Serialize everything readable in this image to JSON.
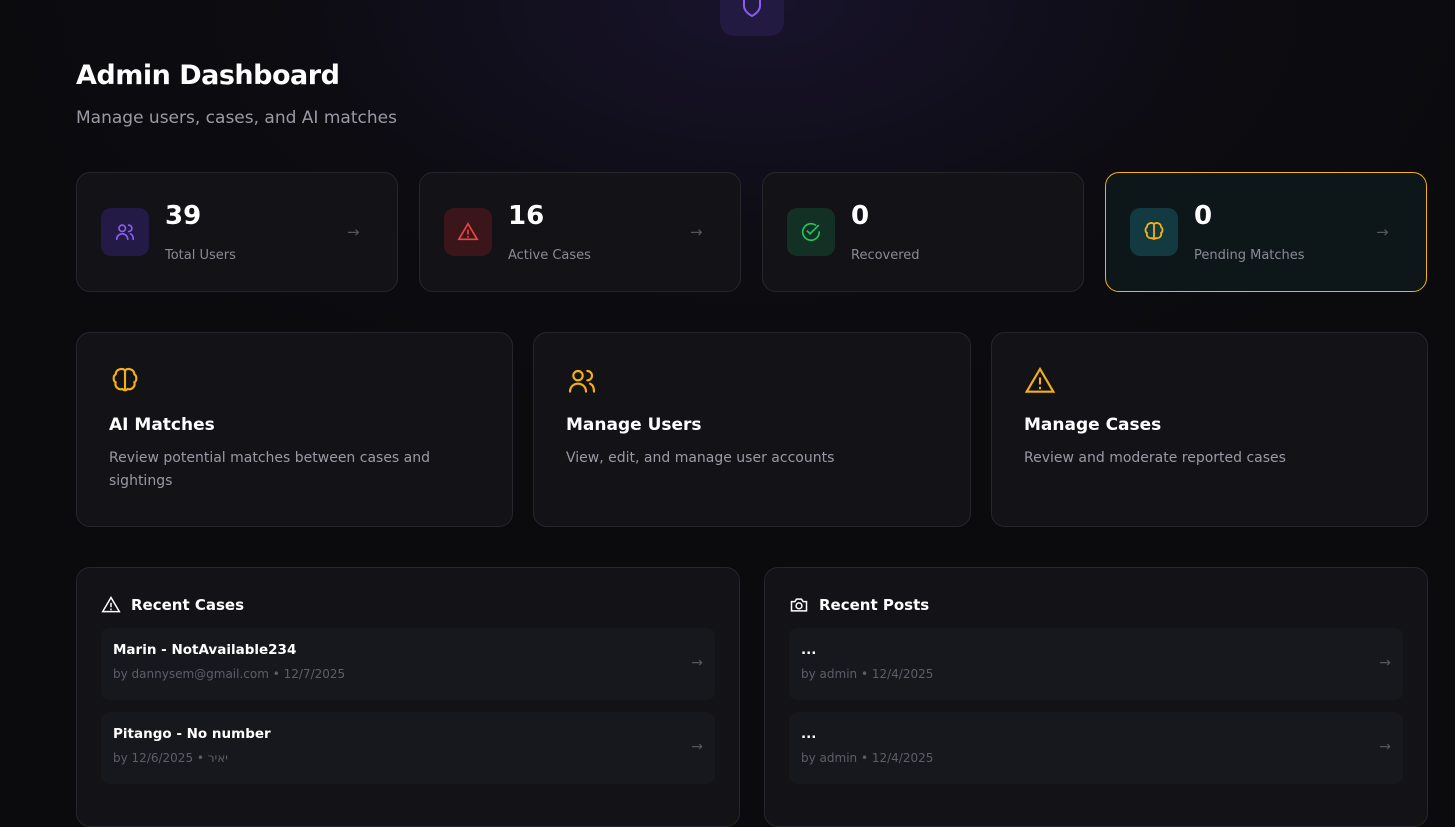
{
  "header": {
    "title": "Admin Dashboard",
    "subtitle": "Manage users, cases, and AI matches",
    "logo_icon": "shield-icon"
  },
  "stats": [
    {
      "value": "39",
      "label": "Total Users",
      "icon": "users-icon",
      "color": "#8b5cf6"
    },
    {
      "value": "16",
      "label": "Active Cases",
      "icon": "alert-triangle-icon",
      "color": "#ef4444"
    },
    {
      "value": "0",
      "label": "Recovered",
      "icon": "check-circle-icon",
      "color": "#22c55e"
    },
    {
      "value": "0",
      "label": "Pending Matches",
      "icon": "brain-icon",
      "color": "#f5b014",
      "highlighted": true
    }
  ],
  "actions": [
    {
      "title": "AI Matches",
      "description": "Review potential matches between cases and sightings",
      "icon": "brain-icon"
    },
    {
      "title": "Manage Users",
      "description": "View, edit, and manage user accounts",
      "icon": "users-icon"
    },
    {
      "title": "Manage Cases",
      "description": "Review and moderate reported cases",
      "icon": "alert-triangle-icon"
    }
  ],
  "recent_cases": {
    "title": "Recent Cases",
    "items": [
      {
        "title": "Marin - NotAvailable234",
        "meta": "by dannysem@gmail.com • 12/7/2025"
      },
      {
        "title": "Pitango - No number",
        "meta": "by יאיר • 12/6/2025"
      }
    ]
  },
  "recent_posts": {
    "title": "Recent Posts",
    "items": [
      {
        "title": "...",
        "meta": "by admin • 12/4/2025"
      },
      {
        "title": "...",
        "meta": "by admin • 12/4/2025"
      }
    ]
  },
  "accent": "#f5b014"
}
